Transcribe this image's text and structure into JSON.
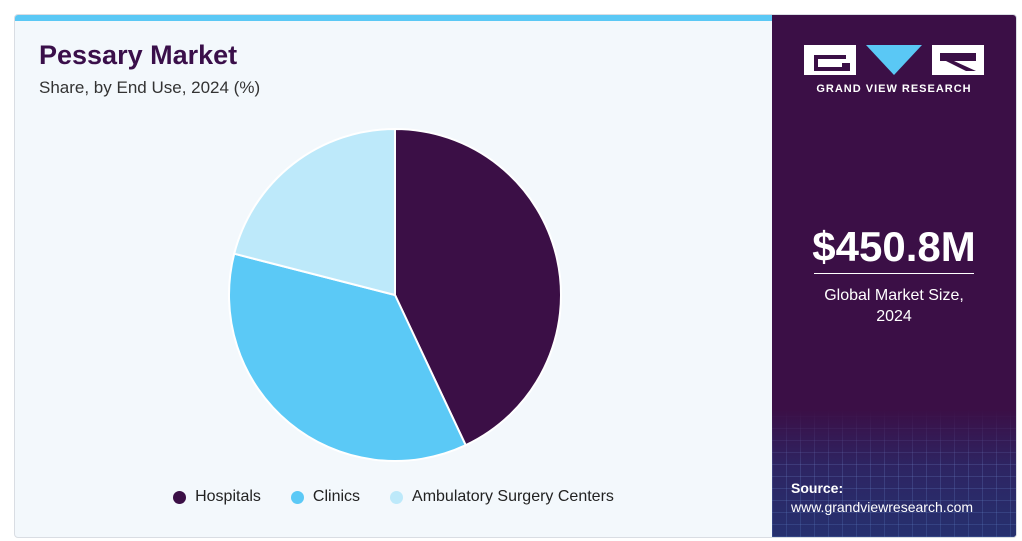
{
  "title": "Pessary Market",
  "subtitle": "Share, by End Use, 2024 (%)",
  "chart_data": {
    "type": "pie",
    "title": "Pessary Market",
    "subtitle": "Share, by End Use, 2024 (%)",
    "categories": [
      "Hospitals",
      "Clinics",
      "Ambulatory Surgery Centers"
    ],
    "values": [
      43,
      36,
      21
    ],
    "colors": [
      "#3b0f46",
      "#5bc9f6",
      "#bde9fa"
    ],
    "legend_position": "bottom"
  },
  "sidebar": {
    "logo_text": "GRAND VIEW RESEARCH",
    "market_value": "$450.8M",
    "market_label_line1": "Global Market Size,",
    "market_label_line2": "2024",
    "source_label": "Source:",
    "source_url": "www.grandviewresearch.com"
  },
  "colors": {
    "accent": "#5ac8f5",
    "brand_purple": "#3b0f46",
    "panel_background": "#f3f8fc"
  }
}
